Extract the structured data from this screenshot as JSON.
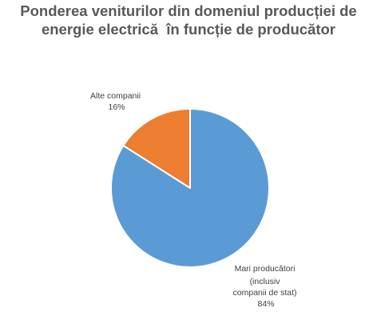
{
  "chart_data": {
    "type": "pie",
    "title": {
      "lines": [
        "Ponderea veniturilor din domeniul producției de",
        "energie electrică  în funcție de producător"
      ]
    },
    "slices": [
      {
        "label_lines": [
          "Mari producători",
          "(inclusiv",
          "companii de stat)"
        ],
        "percent_label": "84%",
        "value": 84,
        "color": "#5b9bd5"
      },
      {
        "label_lines": [
          "Alte companii"
        ],
        "percent_label": "16%",
        "value": 16,
        "color": "#ed7d31"
      }
    ],
    "legend": "none"
  }
}
